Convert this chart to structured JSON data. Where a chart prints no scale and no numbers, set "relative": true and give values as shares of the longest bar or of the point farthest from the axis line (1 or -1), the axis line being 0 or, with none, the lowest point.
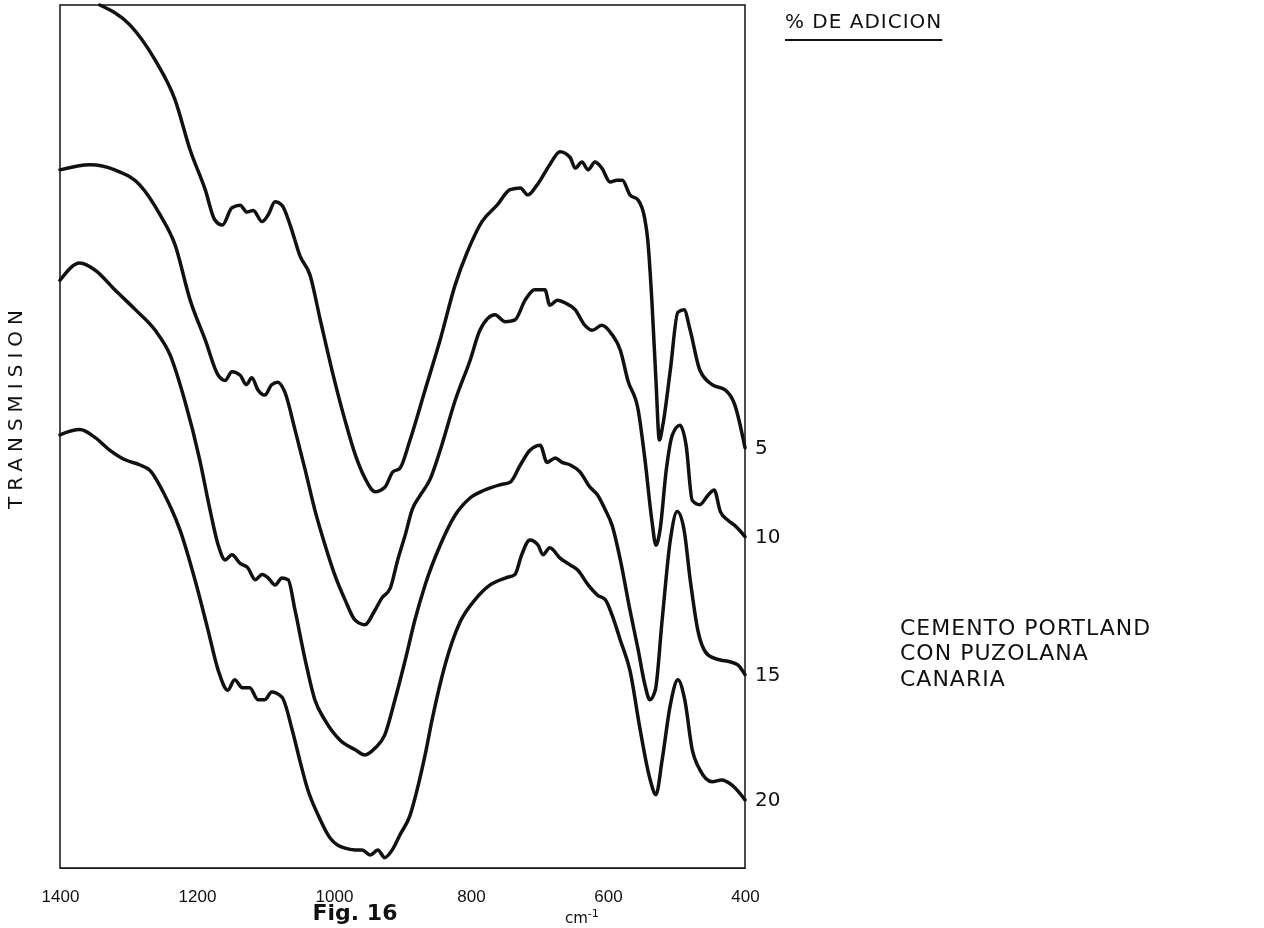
{
  "chart_data": {
    "type": "line",
    "relative": true,
    "xlabel": "cm$^{-1}$",
    "ylabel": "TRANSMISION",
    "legend_title": "% DE ADICION",
    "xlim": [
      1400,
      400
    ],
    "xticks": [
      1400,
      1200,
      1000,
      800,
      600,
      400
    ],
    "grid": false,
    "marker": "none",
    "line_style": "solid",
    "annotations": [
      "CEMENTO PORTLAND\nCON PUZOLANA\nCANARIA",
      "Fig. 16"
    ],
    "series": [
      {
        "name": "5",
        "color": "#111111",
        "x": [
          1342,
          1298,
          1261,
          1232,
          1210,
          1188,
          1174,
          1163,
          1149,
          1137,
          1127,
          1118,
          1105,
          1096,
          1086,
          1076,
          1064,
          1050,
          1035,
          1020,
          1003,
          984,
          969,
          955,
          940,
          926,
          914,
          904,
          889,
          867,
          845,
          823,
          801,
          784,
          762,
          743,
          728,
          717,
          704,
          685,
          670,
          655,
          648,
          638,
          629,
          619,
          609,
          597,
          587,
          579,
          568,
          556,
          546,
          542,
          536,
          530,
          525,
          520,
          509,
          498,
          489,
          480,
          466,
          448,
          429,
          415,
          400
        ],
        "values": [
          1.0,
          0.977,
          0.936,
          0.89,
          0.832,
          0.786,
          0.751,
          0.745,
          0.765,
          0.768,
          0.76,
          0.762,
          0.749,
          0.757,
          0.772,
          0.768,
          0.745,
          0.71,
          0.687,
          0.635,
          0.577,
          0.519,
          0.479,
          0.452,
          0.436,
          0.441,
          0.459,
          0.463,
          0.496,
          0.554,
          0.612,
          0.676,
          0.722,
          0.749,
          0.768,
          0.786,
          0.788,
          0.78,
          0.791,
          0.815,
          0.83,
          0.823,
          0.811,
          0.818,
          0.809,
          0.818,
          0.811,
          0.795,
          0.797,
          0.797,
          0.78,
          0.774,
          0.751,
          0.728,
          0.658,
          0.565,
          0.496,
          0.513,
          0.577,
          0.644,
          0.647,
          0.623,
          0.577,
          0.56,
          0.554,
          0.537,
          0.487
        ]
      },
      {
        "name": "10",
        "color": "#111111",
        "x": [
          1400,
          1356,
          1320,
          1283,
          1254,
          1232,
          1210,
          1188,
          1169,
          1159,
          1149,
          1137,
          1128,
          1120,
          1111,
          1101,
          1091,
          1082,
          1072,
          1057,
          1042,
          1028,
          1013,
          999,
          984,
          969,
          955,
          940,
          930,
          918,
          907,
          896,
          886,
          874,
          860,
          845,
          823,
          801,
          787,
          765,
          750,
          736,
          721,
          707,
          692,
          685,
          674,
          663,
          648,
          634,
          623,
          609,
          594,
          582,
          571,
          556,
          546,
          536,
          530,
          524,
          515,
          506,
          495,
          486,
          477,
          466,
          454,
          445,
          436,
          425,
          415,
          400
        ],
        "values": [
          0.809,
          0.815,
          0.809,
          0.791,
          0.757,
          0.722,
          0.658,
          0.612,
          0.571,
          0.565,
          0.575,
          0.571,
          0.56,
          0.568,
          0.554,
          0.548,
          0.56,
          0.563,
          0.552,
          0.508,
          0.461,
          0.415,
          0.374,
          0.34,
          0.311,
          0.287,
          0.282,
          0.299,
          0.313,
          0.324,
          0.357,
          0.386,
          0.415,
          0.432,
          0.45,
          0.484,
          0.542,
          0.589,
          0.623,
          0.641,
          0.633,
          0.635,
          0.658,
          0.67,
          0.67,
          0.652,
          0.658,
          0.655,
          0.647,
          0.629,
          0.623,
          0.629,
          0.618,
          0.6,
          0.565,
          0.531,
          0.473,
          0.403,
          0.374,
          0.392,
          0.461,
          0.502,
          0.513,
          0.49,
          0.426,
          0.421,
          0.432,
          0.438,
          0.413,
          0.403,
          0.397,
          0.384
        ]
      },
      {
        "name": "15",
        "color": "#111111",
        "x": [
          1400,
          1371,
          1349,
          1320,
          1290,
          1261,
          1239,
          1218,
          1196,
          1181,
          1169,
          1159,
          1149,
          1137,
          1126,
          1115,
          1105,
          1096,
          1086,
          1076,
          1067,
          1057,
          1042,
          1028,
          1013,
          991,
          969,
          955,
          940,
          926,
          911,
          896,
          882,
          867,
          845,
          823,
          801,
          780,
          758,
          743,
          728,
          714,
          699,
          689,
          677,
          667,
          655,
          641,
          626,
          615,
          604,
          594,
          582,
          568,
          556,
          546,
          539,
          531,
          521,
          509,
          499,
          489,
          480,
          469,
          454,
          436,
          422,
          410,
          400
        ],
        "values": [
          0.681,
          0.701,
          0.693,
          0.67,
          0.647,
          0.623,
          0.594,
          0.542,
          0.473,
          0.415,
          0.374,
          0.357,
          0.363,
          0.353,
          0.348,
          0.334,
          0.34,
          0.336,
          0.328,
          0.336,
          0.334,
          0.299,
          0.241,
          0.195,
          0.171,
          0.148,
          0.137,
          0.131,
          0.139,
          0.154,
          0.195,
          0.241,
          0.287,
          0.328,
          0.374,
          0.409,
          0.429,
          0.438,
          0.444,
          0.447,
          0.467,
          0.484,
          0.49,
          0.47,
          0.475,
          0.47,
          0.467,
          0.459,
          0.441,
          0.432,
          0.415,
          0.397,
          0.357,
          0.299,
          0.253,
          0.212,
          0.195,
          0.206,
          0.287,
          0.38,
          0.413,
          0.392,
          0.334,
          0.276,
          0.247,
          0.241,
          0.239,
          0.235,
          0.224
        ]
      },
      {
        "name": "20",
        "color": "#111111",
        "x": [
          1400,
          1371,
          1349,
          1327,
          1305,
          1283,
          1269,
          1247,
          1225,
          1203,
          1184,
          1169,
          1155,
          1145,
          1134,
          1123,
          1111,
          1101,
          1091,
          1076,
          1061,
          1050,
          1038,
          1023,
          1006,
          984,
          969,
          959,
          947,
          936,
          926,
          915,
          904,
          889,
          877,
          867,
          857,
          838,
          816,
          794,
          772,
          750,
          736,
          726,
          714,
          702,
          695,
          685,
          670,
          655,
          644,
          629,
          615,
          604,
          594,
          582,
          568,
          553,
          539,
          530,
          521,
          509,
          498,
          488,
          477,
          466,
          448,
          434,
          419,
          400
        ],
        "values": [
          0.502,
          0.508,
          0.499,
          0.484,
          0.473,
          0.467,
          0.461,
          0.432,
          0.392,
          0.334,
          0.276,
          0.229,
          0.206,
          0.218,
          0.209,
          0.209,
          0.195,
          0.195,
          0.204,
          0.198,
          0.16,
          0.125,
          0.09,
          0.061,
          0.035,
          0.023,
          0.021,
          0.021,
          0.015,
          0.021,
          0.012,
          0.021,
          0.038,
          0.061,
          0.096,
          0.131,
          0.171,
          0.235,
          0.285,
          0.311,
          0.328,
          0.336,
          0.34,
          0.363,
          0.38,
          0.374,
          0.363,
          0.371,
          0.359,
          0.351,
          0.345,
          0.328,
          0.316,
          0.311,
          0.293,
          0.264,
          0.229,
          0.16,
          0.104,
          0.085,
          0.125,
          0.189,
          0.218,
          0.195,
          0.137,
          0.114,
          0.1,
          0.102,
          0.096,
          0.079
        ]
      }
    ]
  }
}
